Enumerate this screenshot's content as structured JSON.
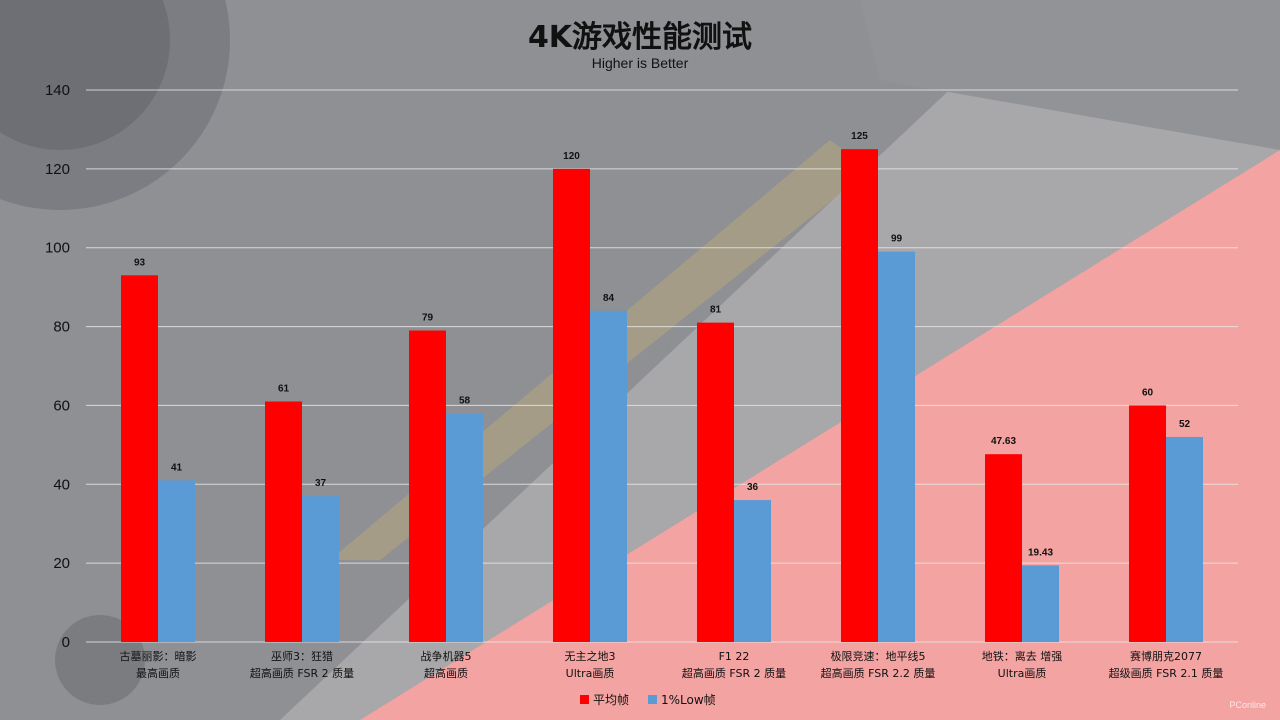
{
  "watermark": "PConline",
  "colors": {
    "avg": "#ff0000",
    "low": "#5b9bd5"
  },
  "chart_data": {
    "type": "bar",
    "title": "4K游戏性能测试",
    "subtitle": "Higher is Better",
    "ylim": [
      0,
      140
    ],
    "yticks": [
      0,
      20,
      40,
      60,
      80,
      100,
      120,
      140
    ],
    "grid": true,
    "legend_position": "bottom",
    "categories": [
      [
        "古墓丽影：暗影",
        "最高画质"
      ],
      [
        "巫师3：狂猎",
        "超高画质 FSR 2 质量"
      ],
      [
        "战争机器5",
        "超高画质"
      ],
      [
        "无主之地3",
        "Ultra画质"
      ],
      [
        "F1 22",
        "超高画质 FSR 2 质量"
      ],
      [
        "极限竞速：地平线5",
        "超高画质 FSR 2.2 质量"
      ],
      [
        "地铁：离去 增强",
        "Ultra画质"
      ],
      [
        "赛博朋克2077",
        "超级画质 FSR 2.1 质量"
      ]
    ],
    "series": [
      {
        "name": "平均帧",
        "color": "#ff0000",
        "values": [
          93,
          61,
          79,
          120,
          81,
          125,
          47.63,
          60
        ],
        "labels": [
          "93",
          "61",
          "79",
          "120",
          "81",
          "125",
          "47.63",
          "60"
        ]
      },
      {
        "name": "1%Low帧",
        "color": "#5b9bd5",
        "values": [
          41,
          37,
          58,
          84,
          36,
          99,
          19.43,
          52
        ],
        "labels": [
          "41",
          "37",
          "58",
          "84",
          "36",
          "99",
          "19.43",
          "52"
        ]
      }
    ]
  }
}
